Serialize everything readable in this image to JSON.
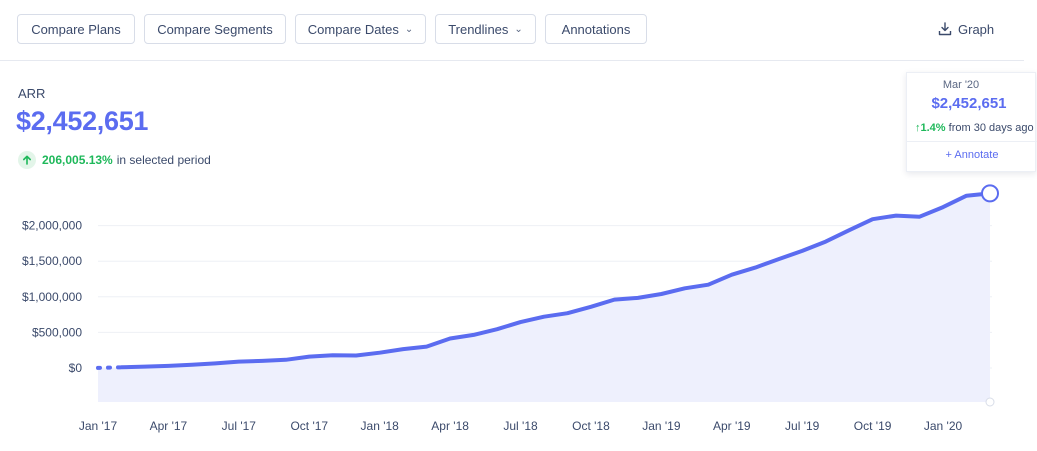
{
  "toolbar": {
    "compare_plans": "Compare Plans",
    "compare_segments": "Compare Segments",
    "compare_dates": "Compare Dates",
    "trendlines": "Trendlines",
    "annotations": "Annotations",
    "graph": "Graph"
  },
  "metric": {
    "title": "ARR",
    "value": "$2,452,651",
    "change_pct": "206,005.13%",
    "change_text": "in selected period"
  },
  "tooltip": {
    "date": "Mar '20",
    "value": "$2,452,651",
    "change_pct": "1.4%",
    "change_text": "from 30 days ago",
    "annotate": "+ Annotate"
  },
  "colors": {
    "accent": "#5b6cf0",
    "area_fill": "#eef0fd",
    "positive": "#1eb85a"
  },
  "chart_data": {
    "type": "area",
    "title": "",
    "xlabel": "",
    "ylabel": "",
    "ylim": [
      0,
      2500000
    ],
    "y_ticks": [
      "$0",
      "$500,000",
      "$1,000,000",
      "$1,500,000",
      "$2,000,000"
    ],
    "x_ticks": [
      "Jan '17",
      "Apr '17",
      "Jul '17",
      "Oct '17",
      "Jan '18",
      "Apr '18",
      "Jul '18",
      "Oct '18",
      "Jan '19",
      "Apr '19",
      "Jul '19",
      "Oct '19",
      "Jan '20"
    ],
    "grid": true,
    "series": [
      {
        "values": [
          {
            "x": "2017-01",
            "y": 1190
          },
          {
            "x": "2017-02",
            "y": 10000
          },
          {
            "x": "2017-03",
            "y": 20000
          },
          {
            "x": "2017-04",
            "y": 30000
          },
          {
            "x": "2017-05",
            "y": 45000
          },
          {
            "x": "2017-06",
            "y": 65000
          },
          {
            "x": "2017-07",
            "y": 90000
          },
          {
            "x": "2017-08",
            "y": 100000
          },
          {
            "x": "2017-09",
            "y": 115000
          },
          {
            "x": "2017-10",
            "y": 160000
          },
          {
            "x": "2017-11",
            "y": 180000
          },
          {
            "x": "2017-12",
            "y": 175000
          },
          {
            "x": "2018-01",
            "y": 215000
          },
          {
            "x": "2018-02",
            "y": 265000
          },
          {
            "x": "2018-03",
            "y": 300000
          },
          {
            "x": "2018-04",
            "y": 415000
          },
          {
            "x": "2018-05",
            "y": 465000
          },
          {
            "x": "2018-06",
            "y": 545000
          },
          {
            "x": "2018-07",
            "y": 645000
          },
          {
            "x": "2018-08",
            "y": 720000
          },
          {
            "x": "2018-09",
            "y": 770000
          },
          {
            "x": "2018-10",
            "y": 860000
          },
          {
            "x": "2018-11",
            "y": 960000
          },
          {
            "x": "2018-12",
            "y": 985000
          },
          {
            "x": "2019-01",
            "y": 1040000
          },
          {
            "x": "2019-02",
            "y": 1120000
          },
          {
            "x": "2019-03",
            "y": 1170000
          },
          {
            "x": "2019-04",
            "y": 1310000
          },
          {
            "x": "2019-05",
            "y": 1410000
          },
          {
            "x": "2019-06",
            "y": 1530000
          },
          {
            "x": "2019-07",
            "y": 1645000
          },
          {
            "x": "2019-08",
            "y": 1775000
          },
          {
            "x": "2019-09",
            "y": 1935000
          },
          {
            "x": "2019-10",
            "y": 2090000
          },
          {
            "x": "2019-11",
            "y": 2140000
          },
          {
            "x": "2019-12",
            "y": 2125000
          },
          {
            "x": "2020-01",
            "y": 2260000
          },
          {
            "x": "2020-02",
            "y": 2420000
          },
          {
            "x": "2020-03",
            "y": 2452651
          }
        ]
      }
    ]
  }
}
